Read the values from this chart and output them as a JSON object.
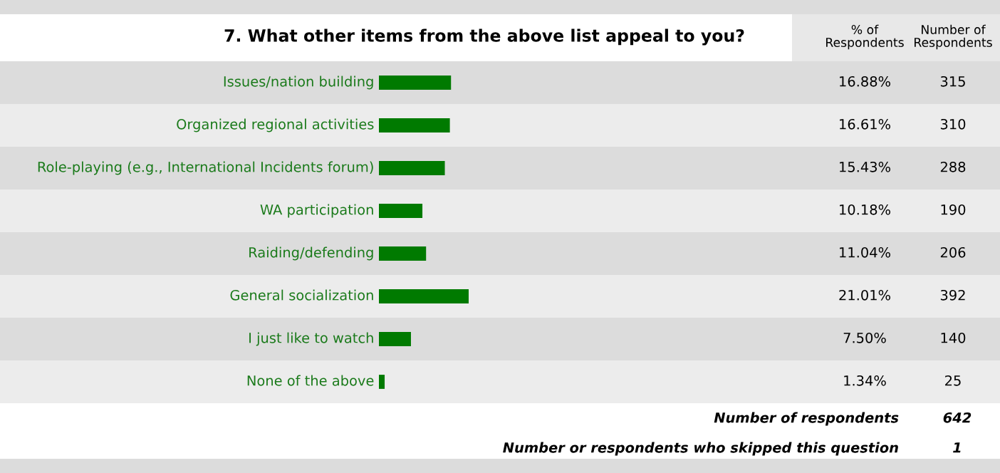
{
  "chart_data": {
    "type": "bar",
    "orientation": "horizontal",
    "title": "7. What other items from the above list appeal to you?",
    "categories": [
      "Issues/nation building",
      "Organized regional activities",
      "Role-playing (e.g., International Incidents forum)",
      "WA participation",
      "Raiding/defending",
      "General socialization",
      "I just like to watch",
      "None of the above"
    ],
    "series": [
      {
        "name": "% of Respondents",
        "color": "#007a00",
        "values": [
          16.88,
          16.61,
          15.43,
          10.18,
          11.04,
          21.01,
          7.5,
          1.34
        ],
        "value_labels": [
          "16.88%",
          "16.61%",
          "15.43%",
          "10.18%",
          "11.04%",
          "21.01%",
          "7.50%",
          "1.34%"
        ]
      }
    ],
    "annotations": [
      "Number of Respondents",
      "315",
      "310",
      "288",
      "190",
      "206",
      "392",
      "140",
      "25",
      "Number of respondents",
      "642",
      "Number or respondents who skipped this question",
      "1"
    ]
  }
}
